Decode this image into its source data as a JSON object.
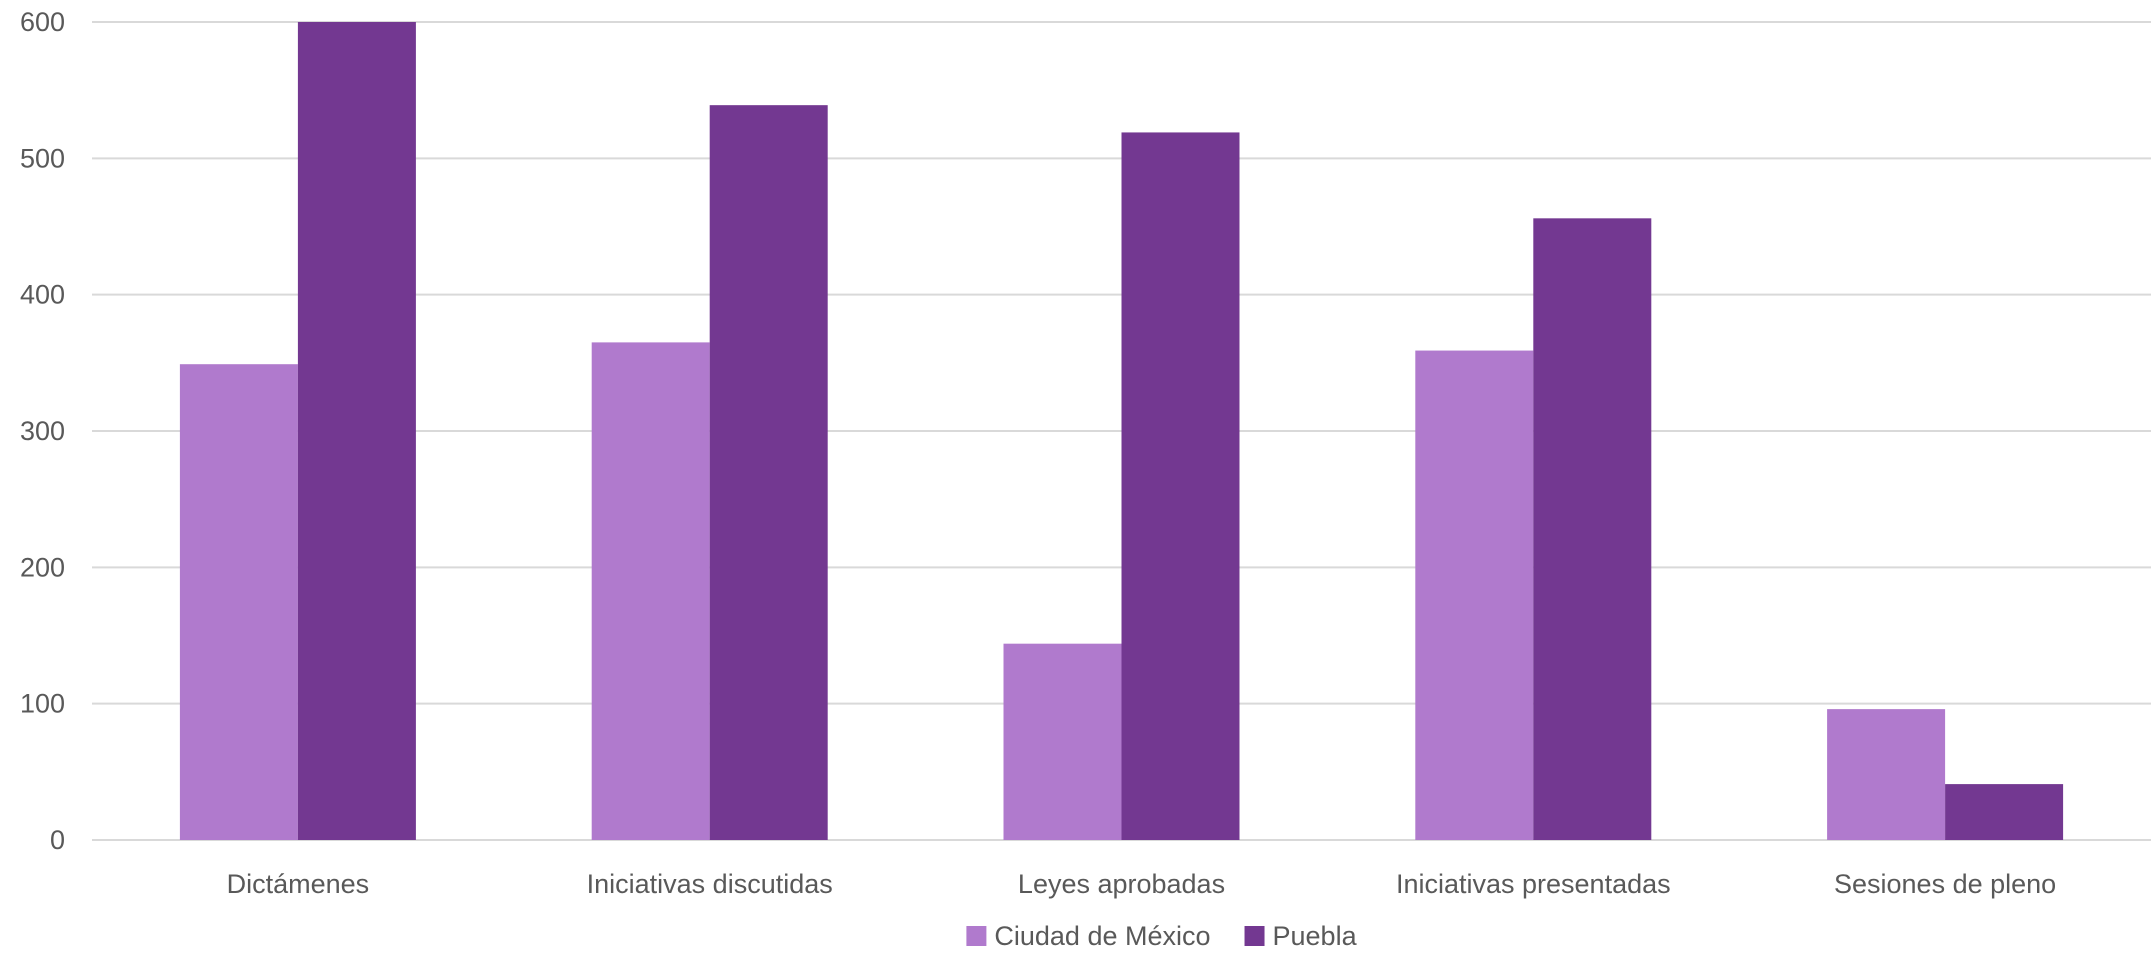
{
  "chart_data": {
    "type": "bar",
    "categories": [
      "Dictámenes",
      "Iniciativas discutidas",
      "Leyes aprobadas",
      "Iniciativas presentadas",
      "Sesiones de pleno"
    ],
    "series": [
      {
        "name": "Ciudad de México",
        "color": "#b07acd",
        "values": [
          349,
          365,
          144,
          359,
          96
        ]
      },
      {
        "name": "Puebla",
        "color": "#733891",
        "values": [
          600,
          539,
          519,
          456,
          41
        ]
      }
    ],
    "title": "",
    "xlabel": "",
    "ylabel": "",
    "ylim": [
      0,
      600
    ],
    "yticks": [
      0,
      100,
      200,
      300,
      400,
      500,
      600
    ],
    "grid": true,
    "legend_position": "bottom"
  }
}
